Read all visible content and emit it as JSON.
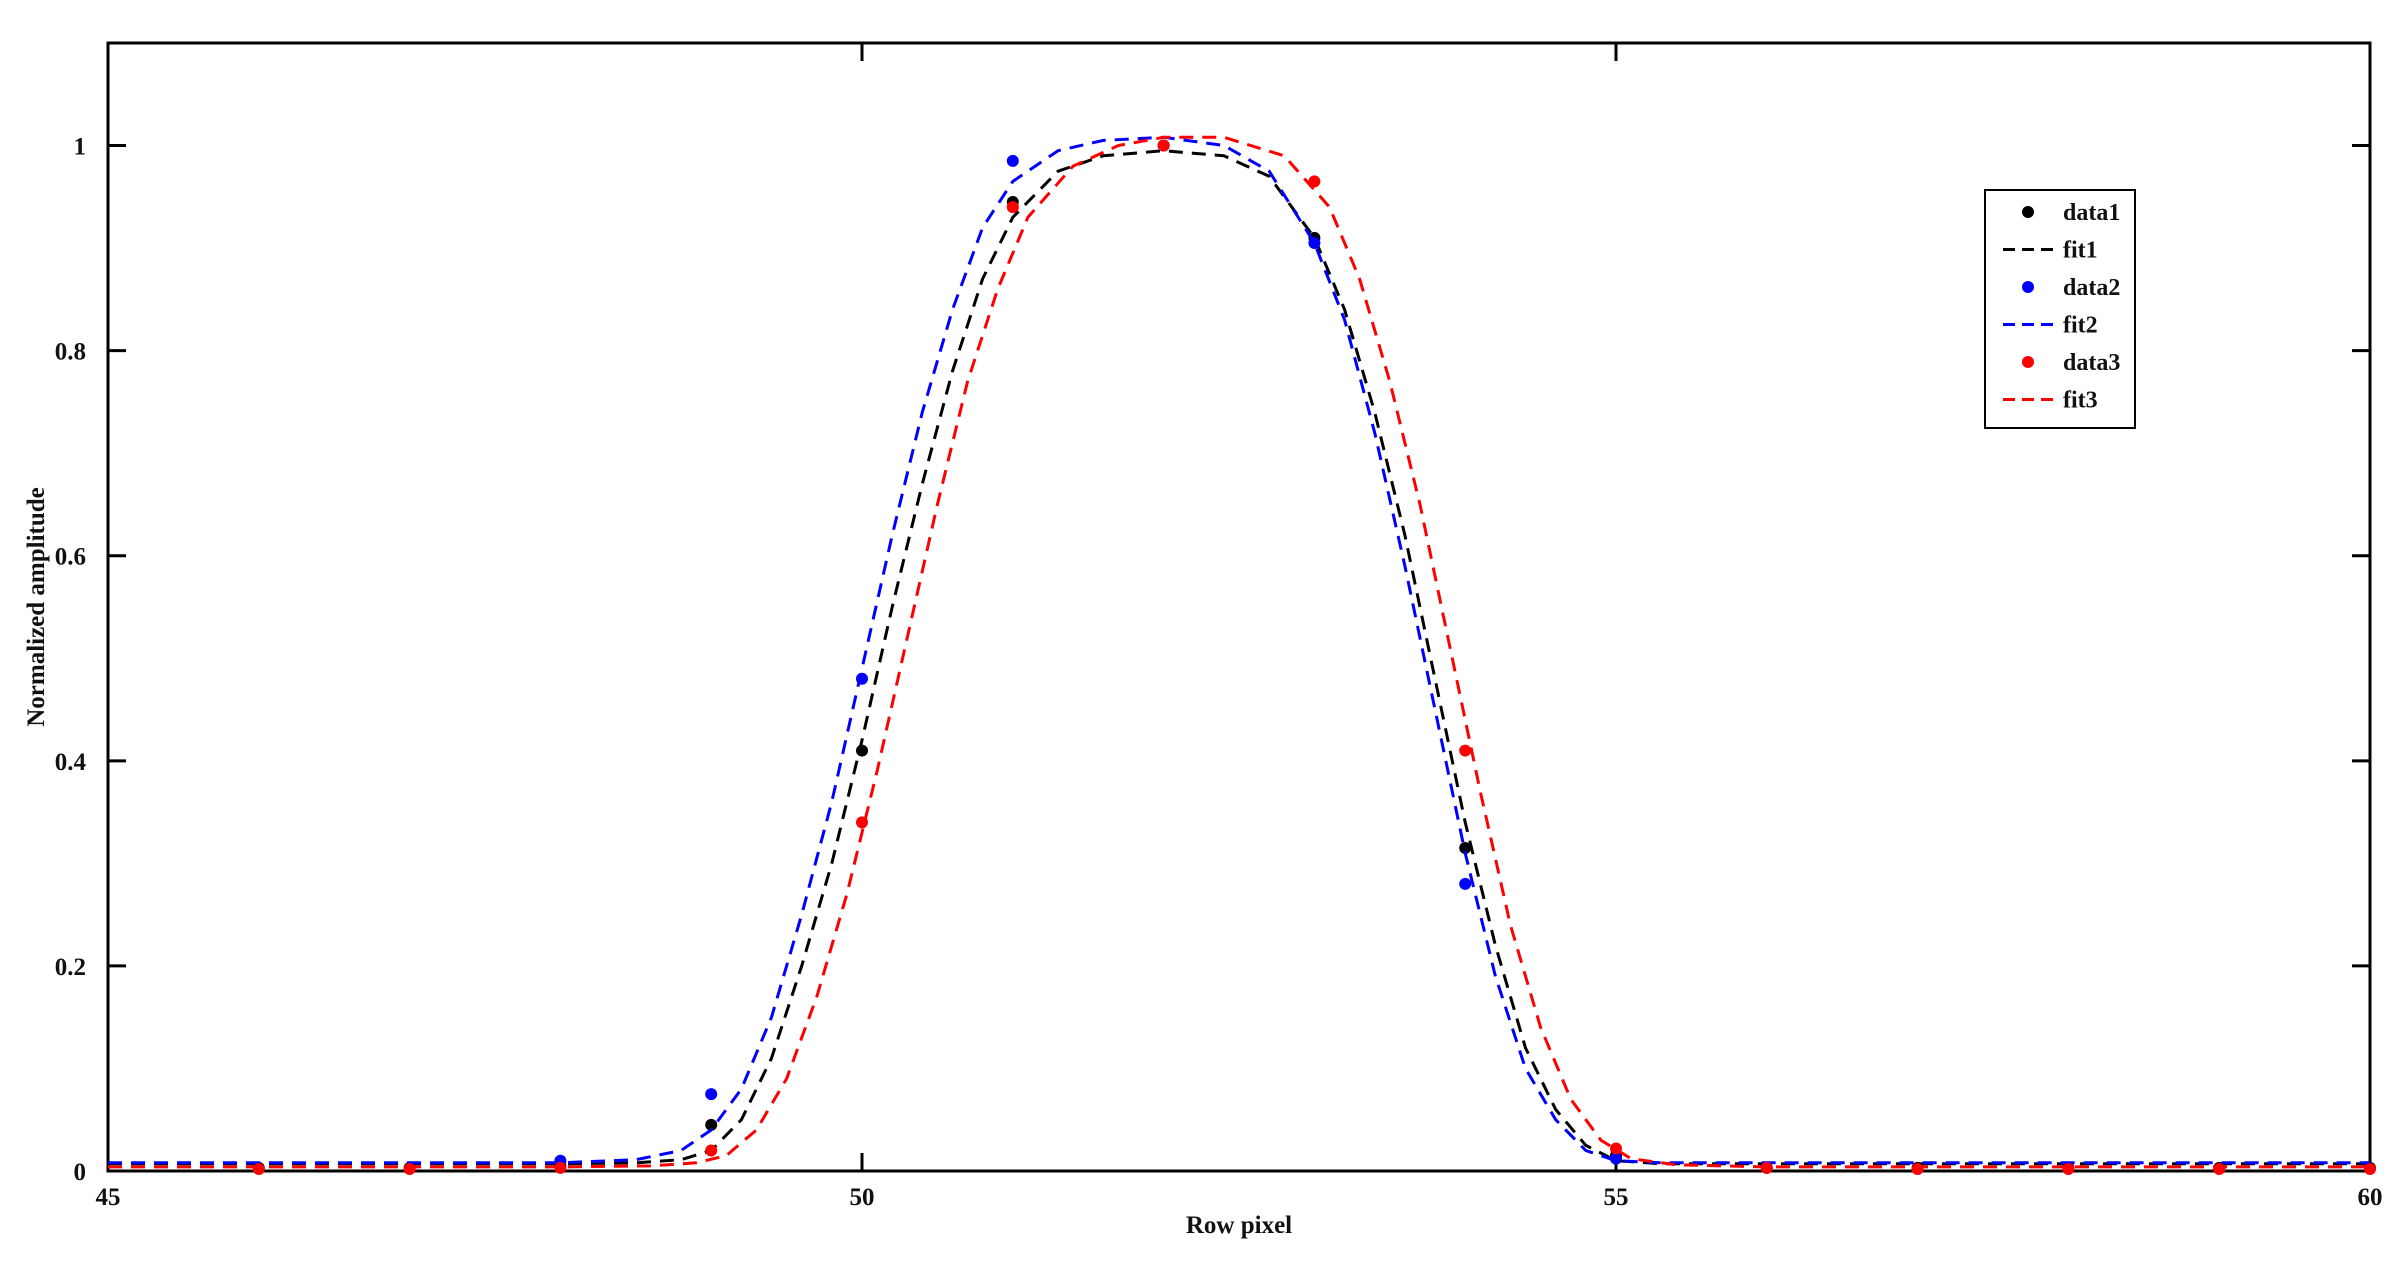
{
  "chart_data": {
    "type": "line",
    "title": "",
    "xlabel": "Row pixel",
    "ylabel": "Normalized amplitude",
    "xlim": [
      45,
      60
    ],
    "ylim": [
      0,
      1.1
    ],
    "xticks": [
      45,
      50,
      55,
      60
    ],
    "yticks": [
      0,
      0.2,
      0.4,
      0.6,
      0.8,
      1
    ],
    "ytick_labels": [
      "0",
      "0.2",
      "0.4",
      "0.6",
      "0.8",
      "1"
    ],
    "grid": false,
    "legend_position": "top-right",
    "series": [
      {
        "name": "data1",
        "kind": "points",
        "color": "#000000",
        "x": [
          46,
          47,
          48,
          49,
          50,
          51,
          52,
          53,
          54,
          55,
          56,
          57,
          58,
          59,
          60
        ],
        "y": [
          0.003,
          0.003,
          0.005,
          0.045,
          0.41,
          0.945,
          1.0,
          0.91,
          0.315,
          0.015,
          0.003,
          0.003,
          0.003,
          0.003,
          0.003
        ]
      },
      {
        "name": "fit1",
        "kind": "dashed-line",
        "color": "#000000",
        "x": [
          45,
          48,
          48.5,
          48.8,
          49.0,
          49.2,
          49.4,
          49.6,
          49.8,
          50.0,
          50.2,
          50.4,
          50.6,
          50.8,
          51.0,
          51.3,
          51.6,
          52.0,
          52.4,
          52.7,
          53.0,
          53.2,
          53.4,
          53.6,
          53.8,
          54.0,
          54.2,
          54.4,
          54.6,
          54.8,
          55.0,
          55.3,
          56,
          60
        ],
        "y": [
          0.007,
          0.007,
          0.008,
          0.011,
          0.02,
          0.05,
          0.11,
          0.2,
          0.3,
          0.42,
          0.55,
          0.67,
          0.78,
          0.87,
          0.93,
          0.975,
          0.99,
          0.995,
          0.99,
          0.97,
          0.91,
          0.84,
          0.74,
          0.62,
          0.48,
          0.34,
          0.22,
          0.12,
          0.06,
          0.025,
          0.01,
          0.007,
          0.007,
          0.007
        ]
      },
      {
        "name": "data2",
        "kind": "points",
        "color": "#0000ff",
        "x": [
          48,
          49,
          50,
          51,
          52,
          53,
          54,
          55
        ],
        "y": [
          0.01,
          0.075,
          0.48,
          0.985,
          1.0,
          0.905,
          0.28,
          0.012
        ]
      },
      {
        "name": "fit2",
        "kind": "dashed-line",
        "color": "#0000ff",
        "x": [
          45,
          48,
          48.5,
          48.8,
          49.0,
          49.2,
          49.4,
          49.6,
          49.8,
          50.0,
          50.2,
          50.4,
          50.6,
          50.8,
          51.0,
          51.3,
          51.6,
          52.0,
          52.4,
          52.7,
          53.0,
          53.2,
          53.4,
          53.6,
          53.8,
          54.0,
          54.2,
          54.4,
          54.6,
          54.8,
          55.0,
          55.3,
          56,
          60
        ],
        "y": [
          0.008,
          0.008,
          0.011,
          0.02,
          0.04,
          0.08,
          0.15,
          0.25,
          0.36,
          0.49,
          0.62,
          0.74,
          0.84,
          0.92,
          0.965,
          0.995,
          1.005,
          1.008,
          1.0,
          0.975,
          0.905,
          0.83,
          0.72,
          0.59,
          0.45,
          0.31,
          0.19,
          0.1,
          0.05,
          0.02,
          0.01,
          0.008,
          0.008,
          0.008
        ]
      },
      {
        "name": "data3",
        "kind": "points",
        "color": "#ff0000",
        "x": [
          46,
          47,
          48,
          49,
          50,
          51,
          52,
          53,
          54,
          55,
          56,
          57,
          58,
          59,
          60
        ],
        "y": [
          0.002,
          0.002,
          0.003,
          0.02,
          0.34,
          0.94,
          1.0,
          0.965,
          0.41,
          0.022,
          0.003,
          0.002,
          0.002,
          0.002,
          0.002
        ]
      },
      {
        "name": "fit3",
        "kind": "dashed-line",
        "color": "#ff0000",
        "x": [
          45,
          48,
          48.6,
          48.9,
          49.1,
          49.3,
          49.5,
          49.7,
          49.9,
          50.1,
          50.3,
          50.5,
          50.7,
          50.9,
          51.1,
          51.4,
          51.7,
          52.0,
          52.4,
          52.8,
          53.1,
          53.3,
          53.5,
          53.7,
          53.9,
          54.1,
          54.3,
          54.5,
          54.7,
          54.9,
          55.1,
          55.4,
          56,
          60
        ],
        "y": [
          0.004,
          0.004,
          0.005,
          0.008,
          0.015,
          0.04,
          0.09,
          0.17,
          0.27,
          0.39,
          0.52,
          0.65,
          0.77,
          0.86,
          0.93,
          0.98,
          1.0,
          1.008,
          1.008,
          0.99,
          0.94,
          0.87,
          0.77,
          0.65,
          0.51,
          0.37,
          0.24,
          0.14,
          0.07,
          0.03,
          0.012,
          0.006,
          0.004,
          0.004
        ]
      }
    ]
  }
}
